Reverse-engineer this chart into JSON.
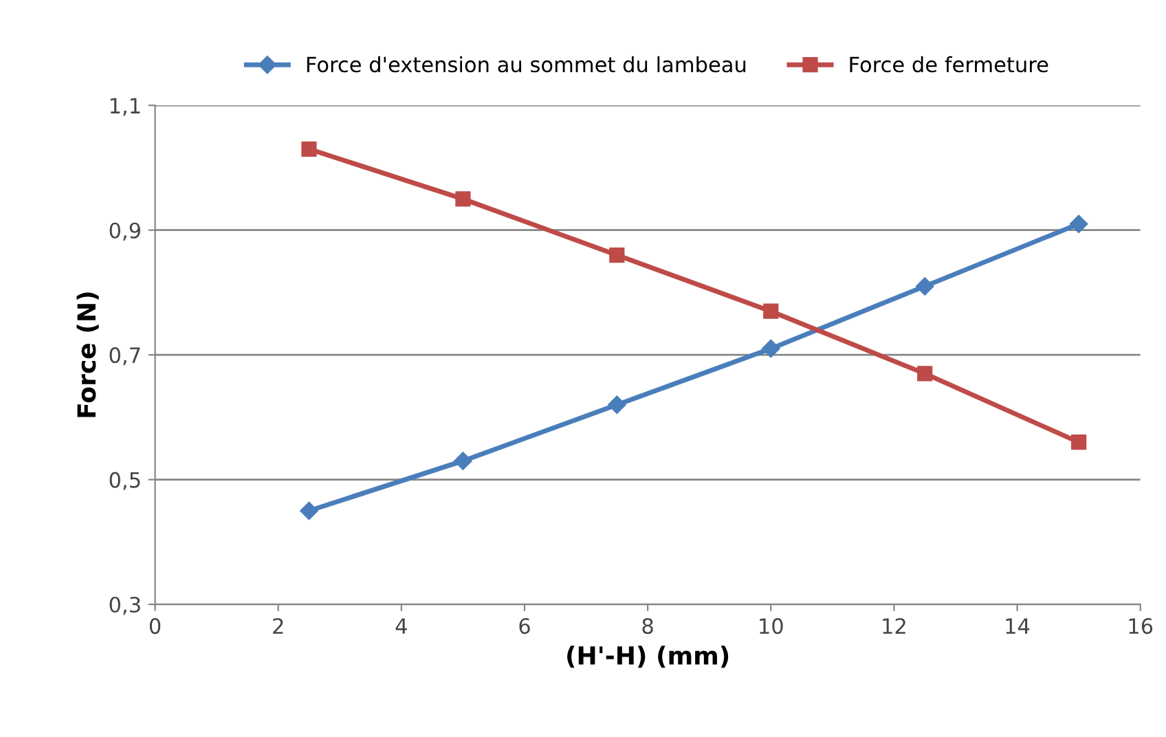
{
  "chart_data": {
    "type": "line",
    "xlabel": "(H'-H) (mm)",
    "ylabel": "Force (N)",
    "x": [
      2.5,
      5,
      7.5,
      10,
      12.5,
      15
    ],
    "series": [
      {
        "name": "Force d'extension au sommet du lambeau",
        "color": "#4a7ebb",
        "marker": "diamond",
        "values": [
          0.45,
          0.53,
          0.62,
          0.71,
          0.81,
          0.91
        ]
      },
      {
        "name": "Force de fermeture",
        "color": "#be4b48",
        "marker": "square",
        "values": [
          1.03,
          0.95,
          0.86,
          0.77,
          0.67,
          0.56
        ]
      }
    ],
    "xlim": [
      0,
      16
    ],
    "xticks": [
      0,
      2,
      4,
      6,
      8,
      10,
      12,
      14,
      16
    ],
    "ylim": [
      0.3,
      1.1
    ],
    "yticks": [
      {
        "value": 0.3,
        "label": "0,3"
      },
      {
        "value": 0.5,
        "label": "0,5"
      },
      {
        "value": 0.7,
        "label": "0,7"
      },
      {
        "value": 0.9,
        "label": "0,9"
      },
      {
        "value": 1.1,
        "label": "1,1"
      }
    ],
    "grid": "y",
    "legend": "top",
    "line_style": "solid"
  }
}
